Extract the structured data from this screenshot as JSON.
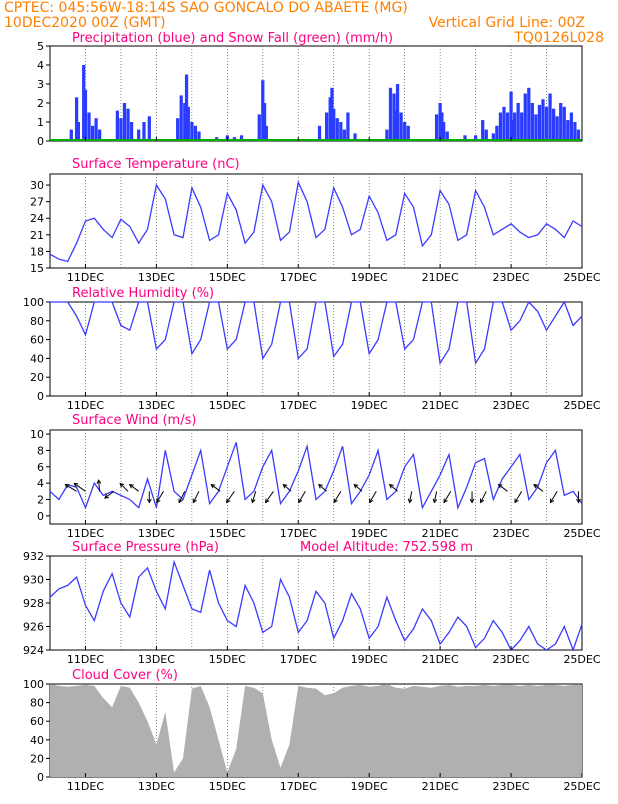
{
  "header": {
    "line1": "CPTEC:  045:56W-18:14S  SAO GONCALO DO ABAETE (MG)",
    "line2": "10DEC2020 00Z (GMT)",
    "grid_note": "Vertical Grid Line: 00Z",
    "run_id": "TQ0126L028"
  },
  "colors": {
    "header_text": "#ff7f00",
    "panel_title": "#ff0080",
    "series_line": "#3b3bff",
    "precip": "#2a3cff",
    "snow": "#00b000",
    "cloud": "#b0b0b0"
  },
  "x_axis": {
    "start_day": 10,
    "end_day": 25,
    "tick_labels": [
      "11DEC",
      "13DEC",
      "15DEC",
      "17DEC",
      "19DEC",
      "21DEC",
      "23DEC",
      "25DEC"
    ]
  },
  "panels": [
    {
      "key": "precip",
      "title": "Precipitation (blue) and Snow Fall (green) (mm/h)",
      "yticks": [
        0,
        1,
        2,
        3,
        4,
        5
      ],
      "ylim": [
        0,
        5
      ]
    },
    {
      "key": "temp",
      "title": "Surface Temperature (nC)",
      "yticks": [
        15,
        18,
        21,
        24,
        27,
        30
      ],
      "ylim": [
        15,
        32
      ]
    },
    {
      "key": "rh",
      "title": "Relative Humidity (%)",
      "yticks": [
        0,
        20,
        40,
        60,
        80,
        100
      ],
      "ylim": [
        0,
        100
      ]
    },
    {
      "key": "wind",
      "title": "Surface Wind (m/s)",
      "yticks": [
        0,
        2,
        4,
        6,
        8,
        10
      ],
      "ylim": [
        -1,
        10.5
      ]
    },
    {
      "key": "pres",
      "title": "Surface Pressure (hPa)",
      "extra": "Model Altitude: 752.598 m",
      "yticks": [
        924,
        926,
        928,
        930,
        932
      ],
      "ylim": [
        924,
        932
      ]
    },
    {
      "key": "cloud",
      "title": "Cloud Cover (%)",
      "yticks": [
        0,
        20,
        40,
        60,
        80,
        100
      ],
      "ylim": [
        0,
        100
      ]
    }
  ],
  "chart_data": [
    {
      "type": "bar",
      "title": "Precipitation (blue) and Snow Fall (green) (mm/h)",
      "series": [
        {
          "name": "Precipitation",
          "x": [
            10.6,
            10.75,
            10.8,
            10.95,
            11.0,
            11.1,
            11.2,
            11.3,
            11.4,
            11.9,
            12.0,
            12.1,
            12.2,
            12.3,
            12.5,
            12.65,
            12.8,
            13.6,
            13.7,
            13.8,
            13.85,
            13.9,
            14.0,
            14.1,
            14.2,
            14.7,
            15.0,
            15.2,
            15.4,
            15.9,
            16.0,
            16.05,
            16.1,
            17.6,
            17.8,
            17.9,
            17.95,
            18.0,
            18.1,
            18.2,
            18.3,
            18.4,
            18.6,
            19.5,
            19.6,
            19.7,
            19.75,
            19.8,
            19.9,
            20.0,
            20.1,
            20.9,
            21.0,
            21.05,
            21.1,
            21.2,
            21.7,
            22.0,
            22.2,
            22.3,
            22.5,
            22.6,
            22.7,
            22.8,
            22.9,
            23.0,
            23.05,
            23.1,
            23.2,
            23.3,
            23.4,
            23.5,
            23.6,
            23.7,
            23.8,
            23.9,
            24.0,
            24.1,
            24.2,
            24.3,
            24.4,
            24.5,
            24.6,
            24.7,
            24.8,
            24.9
          ],
          "values": [
            0.6,
            2.3,
            1.0,
            4.0,
            2.7,
            1.5,
            0.8,
            1.2,
            0.6,
            1.6,
            1.2,
            2.0,
            1.7,
            1.0,
            0.6,
            1.0,
            1.3,
            1.2,
            2.4,
            2.0,
            3.5,
            1.8,
            1.0,
            0.8,
            0.5,
            0.2,
            0.3,
            0.2,
            0.3,
            1.4,
            3.2,
            2.0,
            0.8,
            0.8,
            1.5,
            2.3,
            2.8,
            1.7,
            1.2,
            1.0,
            0.6,
            1.5,
            0.4,
            0.6,
            2.8,
            2.5,
            1.6,
            3.0,
            1.5,
            1.0,
            0.8,
            1.4,
            2.0,
            1.5,
            1.0,
            0.5,
            0.3,
            0.3,
            1.1,
            0.6,
            0.4,
            0.8,
            1.5,
            1.8,
            1.5,
            2.6,
            1.1,
            1.5,
            2.0,
            1.5,
            2.5,
            2.8,
            2.0,
            1.4,
            1.9,
            2.2,
            1.8,
            2.5,
            1.7,
            1.3,
            2.0,
            1.8,
            1.1,
            1.5,
            1.0,
            0.6
          ]
        },
        {
          "name": "Snow Fall",
          "x": [
            10,
            25
          ],
          "values": [
            0,
            0
          ]
        }
      ],
      "xlim": [
        10,
        25
      ],
      "ylim": [
        0,
        5
      ]
    },
    {
      "type": "line",
      "title": "Surface Temperature (nC)",
      "x": [
        10.0,
        10.25,
        10.5,
        10.75,
        11.0,
        11.25,
        11.5,
        11.75,
        12.0,
        12.25,
        12.5,
        12.75,
        13.0,
        13.25,
        13.5,
        13.75,
        14.0,
        14.25,
        14.5,
        14.75,
        15.0,
        15.25,
        15.5,
        15.75,
        16.0,
        16.25,
        16.5,
        16.75,
        17.0,
        17.25,
        17.5,
        17.75,
        18.0,
        18.25,
        18.5,
        18.75,
        19.0,
        19.25,
        19.5,
        19.75,
        20.0,
        20.25,
        20.5,
        20.75,
        21.0,
        21.25,
        21.5,
        21.75,
        22.0,
        22.25,
        22.5,
        22.75,
        23.0,
        23.25,
        23.5,
        23.75,
        24.0,
        24.25,
        24.5,
        24.75,
        25.0
      ],
      "y": [
        17.5,
        16.6,
        16.2,
        19.5,
        23.5,
        24.0,
        22.0,
        20.5,
        23.8,
        22.5,
        19.5,
        22.0,
        30.0,
        27.5,
        21.0,
        20.5,
        29.5,
        26.0,
        20.0,
        21.0,
        28.5,
        25.5,
        19.5,
        21.5,
        30.0,
        27.0,
        20.0,
        21.5,
        30.5,
        27.0,
        20.5,
        22.0,
        29.5,
        26.0,
        21.0,
        22.0,
        28.0,
        25.0,
        20.0,
        21.0,
        28.5,
        26.0,
        19.0,
        21.0,
        29.0,
        26.5,
        20.0,
        21.0,
        29.0,
        26.0,
        21.0,
        22.0,
        23.0,
        21.5,
        20.5,
        21.0,
        23.0,
        22.0,
        20.5,
        23.5,
        22.5
      ],
      "xlim": [
        10,
        25
      ],
      "ylim": [
        15,
        32
      ]
    },
    {
      "type": "line",
      "title": "Relative Humidity (%)",
      "x": [
        10.0,
        10.25,
        10.5,
        10.75,
        11.0,
        11.25,
        11.5,
        11.75,
        12.0,
        12.25,
        12.5,
        12.75,
        13.0,
        13.25,
        13.5,
        13.75,
        14.0,
        14.25,
        14.5,
        14.75,
        15.0,
        15.25,
        15.5,
        15.75,
        16.0,
        16.25,
        16.5,
        16.75,
        17.0,
        17.25,
        17.5,
        17.75,
        18.0,
        18.25,
        18.5,
        18.75,
        19.0,
        19.25,
        19.5,
        19.75,
        20.0,
        20.25,
        20.5,
        20.75,
        21.0,
        21.25,
        21.5,
        21.75,
        22.0,
        22.25,
        22.5,
        22.75,
        23.0,
        23.25,
        23.5,
        23.75,
        24.0,
        24.25,
        24.5,
        24.75,
        25.0
      ],
      "y": [
        100,
        100,
        100,
        85,
        65,
        100,
        100,
        100,
        75,
        70,
        100,
        100,
        50,
        60,
        100,
        100,
        45,
        60,
        100,
        100,
        50,
        60,
        100,
        100,
        40,
        55,
        100,
        100,
        40,
        50,
        100,
        100,
        42,
        55,
        100,
        100,
        45,
        60,
        100,
        100,
        50,
        60,
        100,
        100,
        35,
        50,
        100,
        100,
        35,
        50,
        100,
        100,
        70,
        80,
        100,
        90,
        70,
        85,
        100,
        75,
        85
      ],
      "xlim": [
        10,
        25
      ],
      "ylim": [
        0,
        100
      ]
    },
    {
      "type": "line",
      "title": "Surface Wind (m/s)",
      "x": [
        10.0,
        10.25,
        10.5,
        10.75,
        11.0,
        11.25,
        11.5,
        11.75,
        12.0,
        12.25,
        12.5,
        12.75,
        13.0,
        13.25,
        13.5,
        13.75,
        14.0,
        14.25,
        14.5,
        14.75,
        15.0,
        15.25,
        15.5,
        15.75,
        16.0,
        16.25,
        16.5,
        16.75,
        17.0,
        17.25,
        17.5,
        17.75,
        18.0,
        18.25,
        18.5,
        18.75,
        19.0,
        19.25,
        19.5,
        19.75,
        20.0,
        20.25,
        20.5,
        20.75,
        21.0,
        21.25,
        21.5,
        21.75,
        22.0,
        22.25,
        22.5,
        22.75,
        23.0,
        23.25,
        23.5,
        23.75,
        24.0,
        24.25,
        24.5,
        24.75,
        25.0
      ],
      "y": [
        3.0,
        2.0,
        3.8,
        3.5,
        1.0,
        4.0,
        2.5,
        3.0,
        2.5,
        2.0,
        1.0,
        4.5,
        1.0,
        8.0,
        3.0,
        2.0,
        5.0,
        8.0,
        1.5,
        3.0,
        6.0,
        9.0,
        2.0,
        3.0,
        6.0,
        8.0,
        1.5,
        3.0,
        5.5,
        8.5,
        2.0,
        3.0,
        5.5,
        8.5,
        1.5,
        3.0,
        5.0,
        8.0,
        2.0,
        3.0,
        6.0,
        7.5,
        1.0,
        3.0,
        5.0,
        7.5,
        1.0,
        3.5,
        6.5,
        7.0,
        2.0,
        4.5,
        6.0,
        7.5,
        2.0,
        3.5,
        6.5,
        8.0,
        2.5,
        3.0,
        1.5
      ],
      "xlim": [
        10,
        25
      ],
      "ylim": [
        -1,
        10.5
      ]
    },
    {
      "type": "line",
      "title": "Surface Pressure (hPa)",
      "x": [
        10.0,
        10.25,
        10.5,
        10.75,
        11.0,
        11.25,
        11.5,
        11.75,
        12.0,
        12.25,
        12.5,
        12.75,
        13.0,
        13.25,
        13.5,
        13.75,
        14.0,
        14.25,
        14.5,
        14.75,
        15.0,
        15.25,
        15.5,
        15.75,
        16.0,
        16.25,
        16.5,
        16.75,
        17.0,
        17.25,
        17.5,
        17.75,
        18.0,
        18.25,
        18.5,
        18.75,
        19.0,
        19.25,
        19.5,
        19.75,
        20.0,
        20.25,
        20.5,
        20.75,
        21.0,
        21.25,
        21.5,
        21.75,
        22.0,
        22.25,
        22.5,
        22.75,
        23.0,
        23.25,
        23.5,
        23.75,
        24.0,
        24.25,
        24.5,
        24.75,
        25.0
      ],
      "y": [
        928.5,
        929.2,
        929.5,
        930.2,
        927.8,
        926.5,
        929.0,
        930.5,
        928.0,
        926.8,
        930.2,
        931.0,
        929.0,
        927.5,
        931.5,
        929.5,
        927.5,
        927.2,
        930.8,
        928.0,
        926.5,
        926.0,
        929.5,
        928.0,
        925.5,
        926.0,
        930.0,
        928.5,
        925.5,
        926.5,
        929.0,
        928.0,
        925.0,
        926.5,
        928.8,
        927.5,
        925.0,
        926.0,
        928.5,
        926.5,
        924.8,
        925.8,
        927.5,
        926.5,
        924.5,
        925.5,
        926.8,
        926.0,
        924.2,
        925.0,
        926.5,
        925.5,
        924.0,
        924.8,
        926.0,
        924.5,
        923.8,
        924.5,
        926.0,
        924.0,
        926.2
      ],
      "xlim": [
        10,
        25
      ],
      "ylim": [
        924,
        932
      ]
    },
    {
      "type": "area",
      "title": "Cloud Cover (%)",
      "x": [
        10.0,
        10.25,
        10.5,
        10.75,
        11.0,
        11.25,
        11.5,
        11.75,
        12.0,
        12.25,
        12.5,
        12.75,
        13.0,
        13.25,
        13.5,
        13.75,
        14.0,
        14.25,
        14.5,
        14.75,
        15.0,
        15.25,
        15.5,
        15.75,
        16.0,
        16.25,
        16.5,
        16.75,
        17.0,
        17.25,
        17.5,
        17.75,
        18.0,
        18.25,
        18.5,
        18.75,
        19.0,
        19.25,
        19.5,
        19.75,
        20.0,
        20.25,
        20.5,
        20.75,
        21.0,
        21.25,
        21.5,
        21.75,
        22.0,
        22.25,
        22.5,
        22.75,
        23.0,
        23.25,
        23.5,
        23.75,
        24.0,
        24.25,
        24.5,
        24.75,
        25.0
      ],
      "y": [
        100,
        98,
        97,
        98,
        99,
        98,
        85,
        75,
        98,
        96,
        80,
        60,
        35,
        70,
        5,
        20,
        95,
        98,
        75,
        40,
        5,
        30,
        98,
        96,
        90,
        40,
        10,
        35,
        98,
        96,
        95,
        88,
        90,
        96,
        98,
        99,
        97,
        98,
        100,
        96,
        95,
        98,
        97,
        96,
        98,
        99,
        97,
        98,
        98,
        99,
        98,
        99,
        99,
        98,
        99,
        98,
        99,
        99,
        98,
        99,
        99
      ],
      "xlim": [
        10,
        25
      ],
      "ylim": [
        0,
        100
      ]
    }
  ],
  "wind_arrows": [
    {
      "day": 10.75,
      "dx": -1,
      "dy": -0.6
    },
    {
      "day": 11.0,
      "dx": -1,
      "dy": -0.7
    },
    {
      "day": 11.4,
      "dx": -0.1,
      "dy": -1
    },
    {
      "day": 11.8,
      "dx": -0.8,
      "dy": 0.6
    },
    {
      "day": 12.2,
      "dx": -0.7,
      "dy": -0.7
    },
    {
      "day": 12.5,
      "dx": -0.8,
      "dy": -0.6
    },
    {
      "day": 12.8,
      "dx": 0.0,
      "dy": 1.0
    },
    {
      "day": 13.2,
      "dx": -0.6,
      "dy": 1.0
    },
    {
      "day": 13.8,
      "dx": -0.5,
      "dy": 1.0
    },
    {
      "day": 14.2,
      "dx": -0.5,
      "dy": 1.0
    },
    {
      "day": 14.8,
      "dx": -0.8,
      "dy": -0.6
    },
    {
      "day": 15.2,
      "dx": -0.7,
      "dy": 1.0
    },
    {
      "day": 15.8,
      "dx": -0.3,
      "dy": 1.0
    },
    {
      "day": 16.3,
      "dx": -0.7,
      "dy": 1.0
    },
    {
      "day": 16.8,
      "dx": -0.7,
      "dy": -0.6
    },
    {
      "day": 17.2,
      "dx": -0.6,
      "dy": 1.0
    },
    {
      "day": 17.8,
      "dx": -0.7,
      "dy": -0.6
    },
    {
      "day": 18.2,
      "dx": -0.6,
      "dy": 1.0
    },
    {
      "day": 18.8,
      "dx": -0.7,
      "dy": -0.6
    },
    {
      "day": 19.2,
      "dx": -0.6,
      "dy": 1.0
    },
    {
      "day": 19.8,
      "dx": -0.7,
      "dy": -0.6
    },
    {
      "day": 20.2,
      "dx": -0.2,
      "dy": 1.0
    },
    {
      "day": 20.9,
      "dx": -0.2,
      "dy": 1.0
    },
    {
      "day": 21.3,
      "dx": -0.6,
      "dy": 1.0
    },
    {
      "day": 21.9,
      "dx": 0.0,
      "dy": 1.0
    },
    {
      "day": 22.3,
      "dx": -0.5,
      "dy": 1.0
    },
    {
      "day": 22.9,
      "dx": -0.8,
      "dy": -0.6
    },
    {
      "day": 23.3,
      "dx": -0.6,
      "dy": 1.0
    },
    {
      "day": 23.9,
      "dx": -0.8,
      "dy": -0.6
    },
    {
      "day": 24.3,
      "dx": -0.6,
      "dy": 1.0
    },
    {
      "day": 24.9,
      "dx": 0.0,
      "dy": 1.0
    }
  ]
}
